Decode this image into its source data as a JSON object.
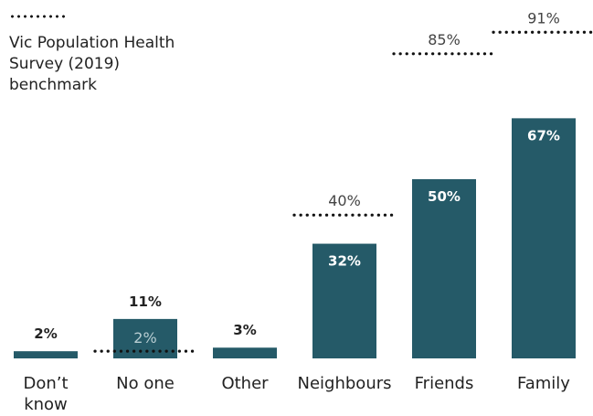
{
  "legend": {
    "label": "Vic Population Health Survey (2019) benchmark"
  },
  "colors": {
    "bar": "#255a68",
    "benchmark": "#111111",
    "text": "#222222",
    "benchmark_text": "#444444",
    "inside_text": "#ffffff"
  },
  "chart_data": {
    "type": "bar",
    "categories": [
      "Don’t know",
      "No one",
      "Other",
      "Neighbours",
      "Friends",
      "Family"
    ],
    "category_lines": [
      [
        "Don’t",
        "know"
      ],
      [
        "No one"
      ],
      [
        "Other"
      ],
      [
        "Neighbours"
      ],
      [
        "Friends"
      ],
      [
        "Family"
      ]
    ],
    "values": [
      2,
      11,
      3,
      32,
      50,
      67
    ],
    "value_labels": [
      "2%",
      "11%",
      "3%",
      "32%",
      "50%",
      "67%"
    ],
    "benchmark": [
      null,
      2,
      null,
      40,
      85,
      91
    ],
    "benchmark_labels": [
      "",
      "2%",
      "",
      "40%",
      "85%",
      "91%"
    ],
    "benchmark_style": "dotted line",
    "ylim": [
      0,
      100
    ],
    "grid": false,
    "legend_position": "top-left"
  }
}
